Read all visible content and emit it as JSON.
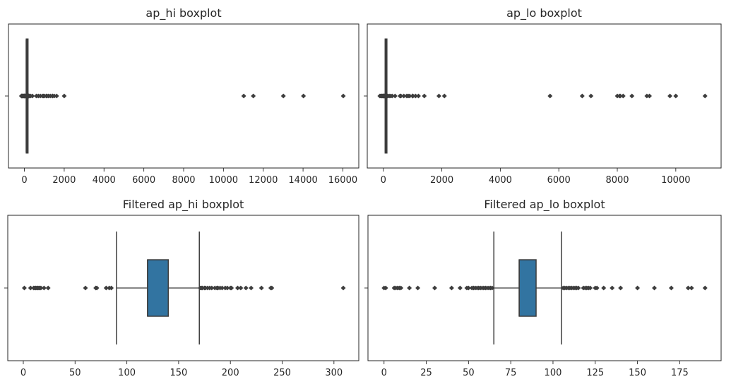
{
  "chart_data": [
    {
      "type": "boxplot",
      "title": "ap_hi boxplot",
      "xlim": [
        -800,
        16800
      ],
      "ticks": [
        0,
        2000,
        4000,
        6000,
        8000,
        10000,
        12000,
        14000,
        16000
      ],
      "tick_labels": [
        "0",
        "2000",
        "4000",
        "6000",
        "8000",
        "10000",
        "12000",
        "14000",
        "16000"
      ],
      "orientation": "horizontal",
      "grid": false,
      "box": {
        "whisker_low": 90,
        "q1": 120,
        "median": 120,
        "q3": 140,
        "whisker_high": 170
      },
      "fill_color": "#3274a1",
      "outliers": [
        -150,
        -140,
        -120,
        -100,
        -80,
        -60,
        -40,
        -20,
        0,
        7,
        10,
        11,
        12,
        13,
        14,
        15,
        16,
        17,
        20,
        24,
        60,
        70,
        80,
        85,
        171,
        180,
        190,
        200,
        210,
        220,
        230,
        240,
        309,
        400,
        600,
        700,
        800,
        906,
        960,
        1000,
        1100,
        1130,
        1205,
        1300,
        1400,
        1420,
        1500,
        1620,
        2000,
        11020,
        11500,
        13010,
        14020,
        16020
      ]
    },
    {
      "type": "boxplot",
      "title": "ap_lo boxplot",
      "xlim": [
        -550,
        11550
      ],
      "ticks": [
        0,
        2000,
        4000,
        6000,
        8000,
        10000
      ],
      "tick_labels": [
        "0",
        "2000",
        "4000",
        "6000",
        "8000",
        "10000"
      ],
      "orientation": "horizontal",
      "grid": false,
      "box": {
        "whisker_low": 65,
        "q1": 80,
        "median": 80,
        "q3": 90,
        "whisker_high": 105
      },
      "fill_color": "#3274a1",
      "outliers": [
        -120,
        -90,
        -70,
        -50,
        -30,
        -10,
        0,
        10,
        20,
        30,
        40,
        50,
        60,
        106,
        150,
        200,
        250,
        300,
        400,
        570,
        600,
        700,
        800,
        850,
        900,
        1000,
        1001,
        1011,
        1100,
        1200,
        1400,
        1900,
        2088,
        5700,
        6800,
        7100,
        8000,
        8079,
        8100,
        8200,
        8500,
        9011,
        9100,
        9800,
        10000,
        11000
      ]
    },
    {
      "type": "boxplot",
      "title": "Filtered ap_hi boxplot",
      "xlim": [
        -15,
        324
      ],
      "ticks": [
        0,
        50,
        100,
        150,
        200,
        250,
        300
      ],
      "tick_labels": [
        "0",
        "50",
        "100",
        "150",
        "200",
        "250",
        "300"
      ],
      "orientation": "horizontal",
      "grid": false,
      "box": {
        "whisker_low": 90,
        "q1": 120,
        "median": 120,
        "q3": 140,
        "whisker_high": 170
      },
      "fill_color": "#3274a1",
      "outliers": [
        1,
        7,
        10,
        11,
        12,
        13,
        14,
        15,
        16,
        17,
        20,
        24,
        60,
        70,
        71,
        80,
        83,
        85,
        171,
        172,
        173,
        175,
        176,
        178,
        180,
        182,
        185,
        187,
        188,
        190,
        192,
        195,
        197,
        200,
        201,
        207,
        210,
        215,
        220,
        230,
        239,
        240,
        309
      ]
    },
    {
      "type": "boxplot",
      "title": "Filtered ap_lo boxplot",
      "xlim": [
        -9.5,
        199.5
      ],
      "ticks": [
        0,
        25,
        50,
        75,
        100,
        125,
        150,
        175
      ],
      "tick_labels": [
        "0",
        "25",
        "50",
        "75",
        "100",
        "125",
        "150",
        "175"
      ],
      "orientation": "horizontal",
      "grid": false,
      "box": {
        "whisker_low": 65,
        "q1": 80,
        "median": 80,
        "q3": 90,
        "whisker_high": 105
      },
      "fill_color": "#3274a1",
      "outliers": [
        0,
        1,
        6,
        7,
        8,
        9,
        10,
        15,
        20,
        30,
        40,
        45,
        49,
        50,
        52,
        53,
        54,
        55,
        56,
        57,
        58,
        59,
        60,
        61,
        62,
        63,
        64,
        106,
        107,
        108,
        109,
        110,
        111,
        112,
        113,
        114,
        115,
        118,
        119,
        120,
        121,
        122,
        125,
        126,
        130,
        135,
        140,
        150,
        160,
        170,
        180,
        182,
        190
      ]
    }
  ]
}
